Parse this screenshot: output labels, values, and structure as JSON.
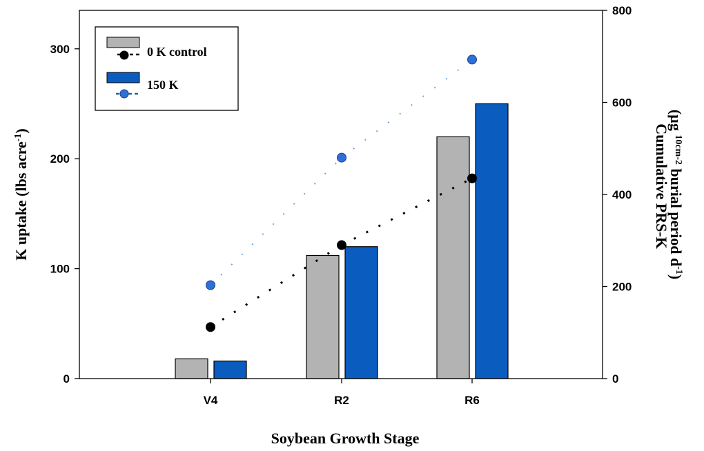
{
  "chart_data": {
    "type": "bar",
    "categories": [
      "V4",
      "R2",
      "R6"
    ],
    "xlabel": "Soybean Growth Stage",
    "ylabel": "K uptake (lbs acre-1)",
    "ylabel_main": "K uptake (lbs acre",
    "ylabel_sup": "-1",
    "ylabel_close": ")",
    "ylim": [
      0,
      335
    ],
    "yticks": [
      0,
      100,
      200,
      300
    ],
    "y2label_line1": "Cumulative PRS-K",
    "y2label_line2": "(µg 10cm-2 burial period d-1)",
    "y2label_parts": {
      "a": "(µg ",
      "b": "10cm",
      "c": "-2",
      "d": " burial period d",
      "e": "-1",
      "f": ")"
    },
    "y2lim": [
      0,
      800
    ],
    "y2ticks": [
      0,
      200,
      400,
      600,
      800
    ],
    "bar_series": [
      {
        "name": "0 K control",
        "color": "#b3b3b3",
        "values": [
          18,
          112,
          220
        ]
      },
      {
        "name": "150 K",
        "color": "#0a5cbf",
        "values": [
          16,
          120,
          250
        ]
      }
    ],
    "line_series": [
      {
        "name": "0 K control",
        "color": "#000000",
        "axis": "right",
        "values": [
          112,
          290,
          435
        ]
      },
      {
        "name": "150 K",
        "color": "#2f6fd8",
        "line_color": "#6aa6e0",
        "axis": "right",
        "values": [
          203,
          480,
          693
        ]
      }
    ],
    "legend": {
      "position": "top-left",
      "entries": [
        "0 K control",
        "150 K"
      ]
    }
  }
}
